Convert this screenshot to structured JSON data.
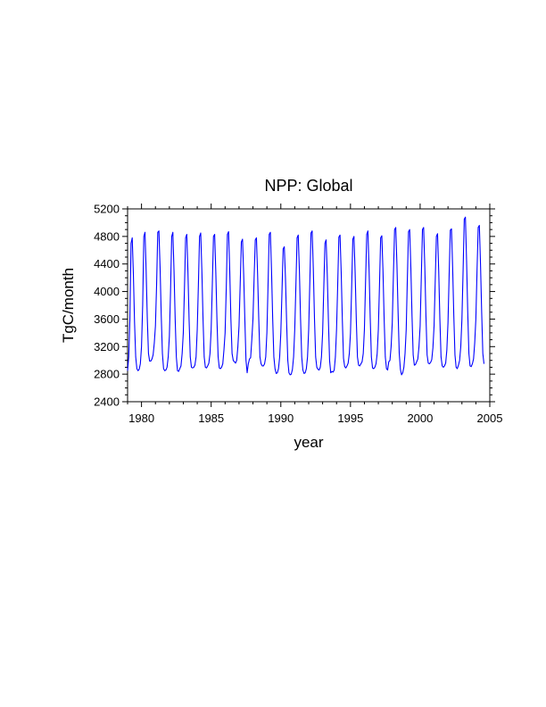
{
  "chart_data": {
    "type": "line",
    "title": "NPP: Global",
    "xlabel": "year",
    "ylabel": "TgC/month",
    "xlim": [
      1979,
      2005
    ],
    "ylim": [
      2400,
      5200
    ],
    "xticks": [
      1980,
      1985,
      1990,
      1995,
      2000,
      2005
    ],
    "yticks": [
      2400,
      2800,
      3200,
      3600,
      4000,
      4400,
      4800,
      5200
    ],
    "grid": false,
    "line_color": "#0000ff",
    "series": [
      {
        "x_start_year": 1979,
        "step": "monthly",
        "values": [
          2850,
          3050,
          3600,
          4700,
          4780,
          4250,
          3550,
          3050,
          2880,
          2850,
          2870,
          2950,
          3200,
          3800,
          4800,
          4860,
          4300,
          3600,
          3100,
          2990,
          2990,
          3020,
          3080,
          3250,
          3500,
          4100,
          4860,
          4880,
          4350,
          3650,
          3100,
          2880,
          2850,
          2860,
          2900,
          3050,
          3350,
          4000,
          4800,
          4860,
          4300,
          3600,
          3050,
          2850,
          2840,
          2880,
          2920,
          3100,
          3400,
          4050,
          4780,
          4830,
          4280,
          3580,
          3050,
          2900,
          2890,
          2900,
          2930,
          3050,
          3450,
          4100,
          4800,
          4850,
          4300,
          3600,
          3050,
          2900,
          2890,
          2920,
          2960,
          3100,
          3450,
          4100,
          4800,
          4830,
          4280,
          3580,
          3050,
          2890,
          2880,
          2900,
          2950,
          3150,
          3400,
          4050,
          4830,
          4870,
          4300,
          3600,
          3100,
          3000,
          2980,
          2960,
          3000,
          3200,
          3500,
          4100,
          4720,
          4760,
          4250,
          3600,
          3000,
          2820,
          2950,
          3020,
          3040,
          3300,
          3600,
          4200,
          4750,
          4780,
          4250,
          3600,
          3050,
          2950,
          2920,
          2920,
          2950,
          3050,
          3400,
          4100,
          4830,
          4860,
          4300,
          3600,
          3050,
          2880,
          2810,
          2820,
          2880,
          3050,
          3400,
          4000,
          4620,
          4650,
          4200,
          3550,
          3000,
          2820,
          2790,
          2800,
          2870,
          3050,
          3450,
          4100,
          4780,
          4820,
          4300,
          3600,
          3050,
          2860,
          2810,
          2820,
          2880,
          3050,
          3450,
          4150,
          4850,
          4880,
          4320,
          3600,
          3050,
          2900,
          2870,
          2860,
          2900,
          3050,
          3400,
          4050,
          4700,
          4750,
          4250,
          3580,
          3000,
          2820,
          2840,
          2830,
          2860,
          3050,
          3450,
          4100,
          4790,
          4820,
          4280,
          3580,
          3030,
          2910,
          2890,
          2920,
          2960,
          3100,
          3400,
          4050,
          4760,
          4800,
          4280,
          3600,
          3050,
          2930,
          2920,
          2950,
          2980,
          3100,
          3450,
          4150,
          4830,
          4880,
          4330,
          3620,
          3050,
          2890,
          2880,
          2900,
          2950,
          3100,
          3450,
          4100,
          4780,
          4810,
          4300,
          3600,
          3050,
          2880,
          2860,
          2980,
          3000,
          3200,
          3550,
          4250,
          4900,
          4930,
          4400,
          3700,
          3100,
          2870,
          2790,
          2820,
          2900,
          3100,
          3450,
          4200,
          4870,
          4900,
          4350,
          3650,
          3080,
          2930,
          2940,
          2980,
          3020,
          3200,
          3500,
          4200,
          4900,
          4930,
          4370,
          3650,
          3080,
          2960,
          2950,
          2970,
          3010,
          3180,
          3500,
          4150,
          4800,
          4840,
          4300,
          3600,
          3050,
          2920,
          2900,
          2920,
          2960,
          3150,
          3550,
          4250,
          4890,
          4910,
          4350,
          3650,
          3080,
          2900,
          2880,
          2930,
          3000,
          3200,
          3600,
          4300,
          5050,
          5080,
          4450,
          3700,
          3100,
          2920,
          2910,
          2950,
          3020,
          3250,
          3600,
          4300,
          4930,
          4960,
          4400,
          3700,
          3100,
          2950
        ]
      }
    ]
  }
}
